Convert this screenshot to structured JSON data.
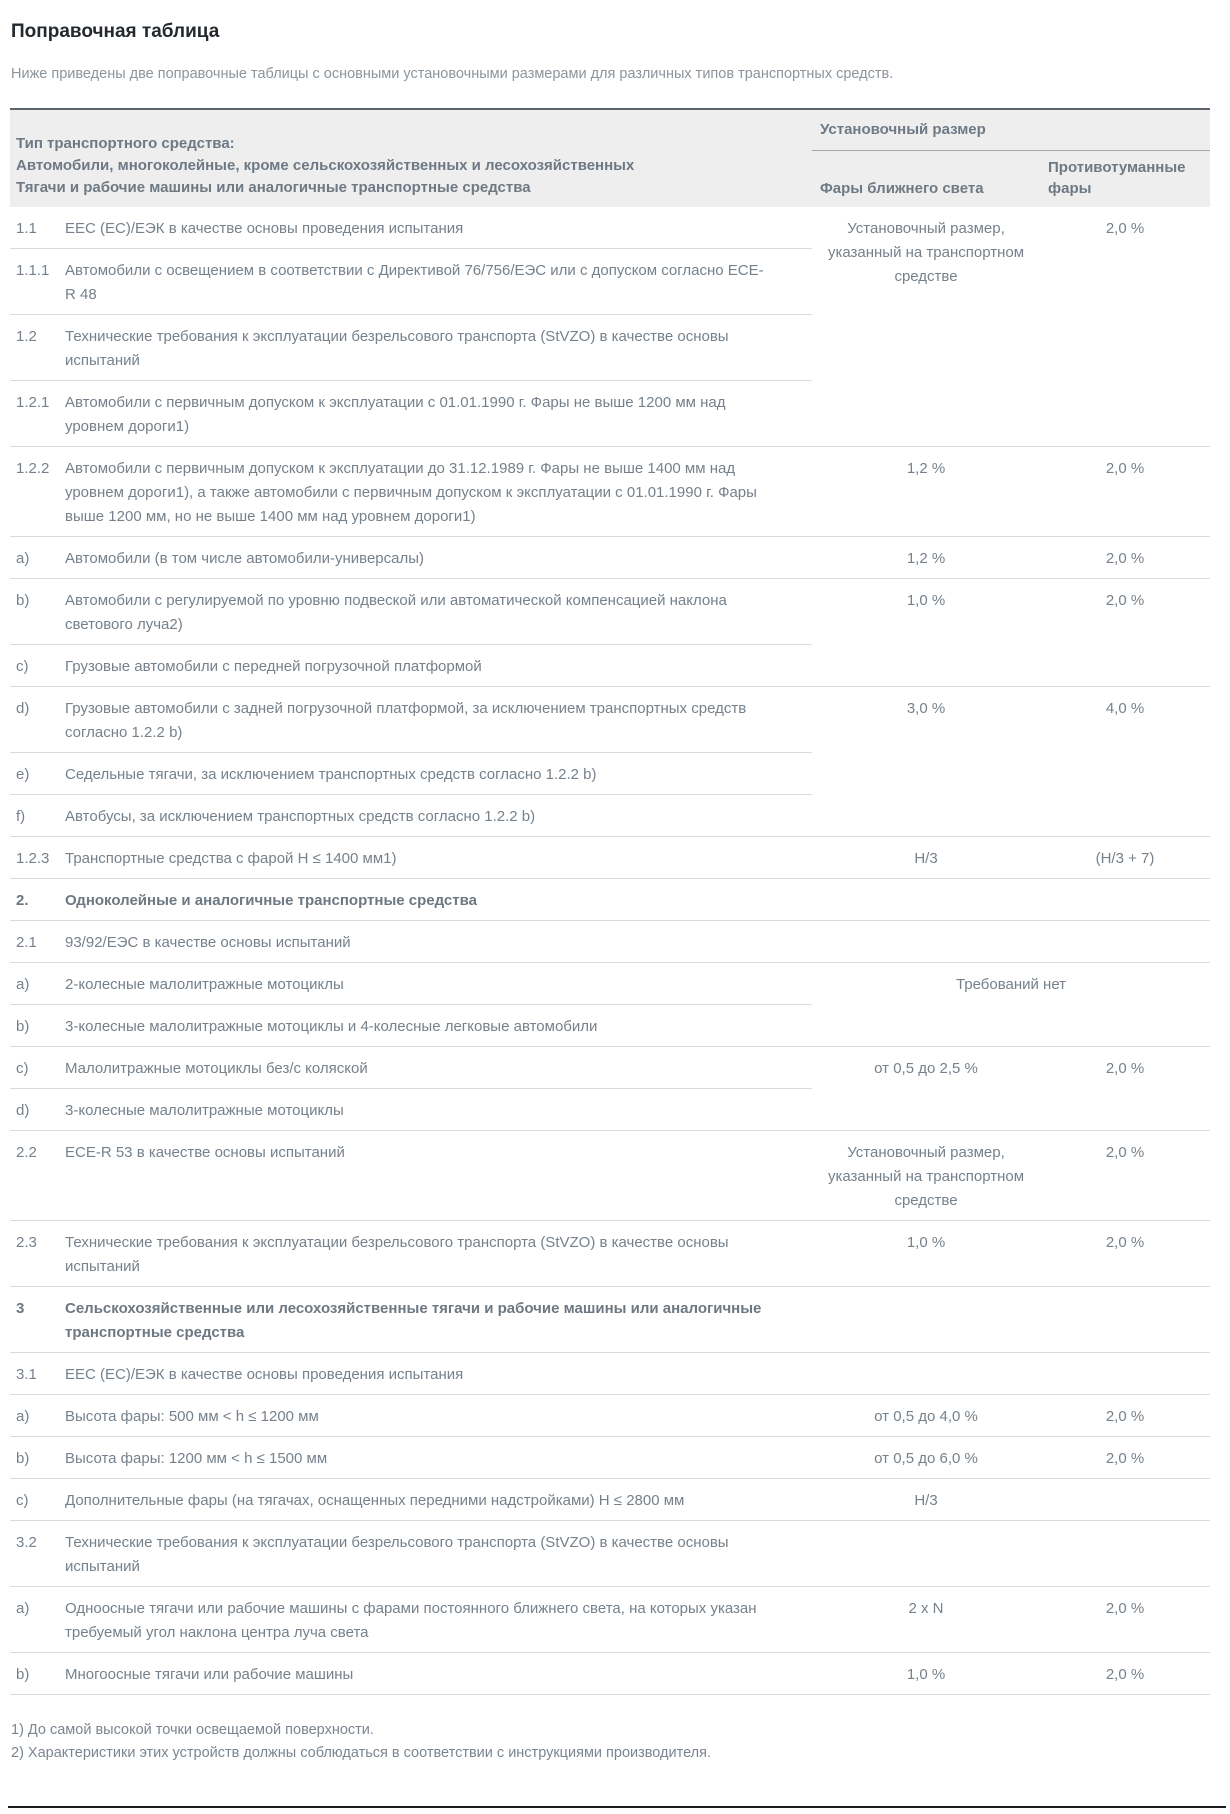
{
  "page": {
    "title": "Поправочная таблица",
    "intro": "Ниже приведены две поправочные таблицы с основными установочными размерами для различных типов транспортных средств.",
    "footnotes": [
      "1) До самой высокой точки освещаемой поверхности.",
      "2) Характеристики этих устройств должны соблюдаться в соответствии с инструкциями производителя."
    ]
  },
  "table": {
    "header": {
      "type_lines": [
        "Тип транспортного средства:",
        "Автомобили, многоколейные, кроме сельскохозяйственных и лесохозяйственных",
        "Тягачи и рабочие машины или аналогичные транспортные средства"
      ],
      "group": "Установочный размер",
      "col1": "Фары ближнего света",
      "col2": "Противотуманные фары"
    },
    "rows": [
      {
        "num": "1.1",
        "text": "EEC (EC)/ЕЭК в качестве основы проведения испытания",
        "val1": "Установочный размер, указанный на транспортном средстве",
        "val2": "2,0 %"
      },
      {
        "num": "1.1.1",
        "text": "Автомобили с освещением в соответствии с Директивой 76/756/ЕЭС или с допуском согласно ECE-R 48"
      },
      {
        "num": "1.2",
        "text": "Технические требования к эксплуатации безрельсового транспорта (StVZO) в качестве основы испытаний"
      },
      {
        "num": "1.2.1",
        "text": "Автомобили с первичным допуском к эксплуатации с 01.01.1990 г. Фары не выше 1200 мм над уровнем дороги1)"
      },
      {
        "num": "1.2.2",
        "text": "Автомобили с первичным допуском к эксплуатации до 31.12.1989 г. Фары не выше 1400 мм над уровнем дороги1), а также автомобили с первичным допуском к эксплуатации с 01.01.1990 г. Фары выше 1200 мм, но не выше 1400 мм над уровнем дороги1)",
        "val1": "1,2 %",
        "val2": "2,0 %"
      },
      {
        "num": "a)",
        "text": "Автомобили (в том числе автомобили-универсалы)",
        "val1": "1,2 %",
        "val2": "2,0 %"
      },
      {
        "num": "b)",
        "text": "Автомобили с регулируемой по уровню подвеской или автоматической компенсацией наклона светового луча2)",
        "val1": "1,0 %",
        "val2": "2,0 %"
      },
      {
        "num": "c)",
        "text": "Грузовые автомобили с передней погрузочной платформой"
      },
      {
        "num": "d)",
        "text": "Грузовые автомобили с задней погрузочной платформой, за исключением транспортных средств согласно 1.2.2 b)",
        "val1": "3,0 %",
        "val2": "4,0 %"
      },
      {
        "num": "e)",
        "text": "Седельные тягачи, за исключением транспортных средств согласно 1.2.2 b)"
      },
      {
        "num": "f)",
        "text": "Автобусы, за исключением транспортных средств согласно 1.2.2 b)"
      },
      {
        "num": "1.2.3",
        "text": "Транспортные средства с фарой H ≤ 1400 мм1)",
        "val1": "H/3",
        "val2": "(H/3 + 7)"
      },
      {
        "num": "2.",
        "text": "Одноколейные и аналогичные транспортные средства",
        "val1": "",
        "val2": ""
      },
      {
        "num": "2.1",
        "text": "93/92/ЕЭС в качестве основы испытаний",
        "val1": "",
        "val2": ""
      },
      {
        "num": "a)",
        "text": "2-колесные малолитражные мотоциклы",
        "valspan": "Требований нет"
      },
      {
        "num": "b)",
        "text": "3-колесные малолитражные мотоциклы и 4-колесные легковые автомобили"
      },
      {
        "num": "c)",
        "text": "Малолитражные мотоциклы без/с коляской",
        "val1": "от 0,5 до 2,5 %",
        "val2": "2,0 %"
      },
      {
        "num": "d)",
        "text": "3-колесные малолитражные мотоциклы"
      },
      {
        "num": "2.2",
        "text": "ECE-R 53 в качестве основы испытаний",
        "val1": "Установочный размер, указанный на транспортном средстве",
        "val2": "2,0 %"
      },
      {
        "num": "2.3",
        "text": "Технические требования к эксплуатации безрельсового транспорта (StVZO) в качестве основы испытаний",
        "val1": "1,0 %",
        "val2": "2,0 %"
      },
      {
        "num": "3",
        "text": "Сельскохозяйственные или лесохозяйственные тягачи и рабочие машины или аналогичные транспортные средства",
        "val1": "",
        "val2": ""
      },
      {
        "num": "3.1",
        "text": "EEC (EC)/ЕЭК в качестве основы проведения испытания",
        "val1": "",
        "val2": ""
      },
      {
        "num": "a)",
        "text": "Высота фары: 500 мм < h ≤ 1200 мм",
        "val1": "от 0,5 до 4,0 %",
        "val2": "2,0 %"
      },
      {
        "num": "b)",
        "text": "Высота фары: 1200 мм < h ≤ 1500 мм",
        "val1": "от 0,5 до 6,0 %",
        "val2": "2,0 %"
      },
      {
        "num": "c)",
        "text": "Дополнительные фары (на тягачах, оснащенных передними надстройками) H ≤ 2800 мм",
        "val1": "H/3",
        "val2": ""
      },
      {
        "num": "3.2",
        "text": "Технические требования к эксплуатации безрельсового транспорта (StVZO) в качестве основы испытаний",
        "val1": "",
        "val2": ""
      },
      {
        "num": "a)",
        "text": "Одноосные тягачи или рабочие машины с фарами постоянного ближнего света, на которых указан требуемый угол наклона центра луча света",
        "val1": "2 x N",
        "val2": "2,0 %"
      },
      {
        "num": "b)",
        "text": "Многоосные тягачи или рабочие машины",
        "val1": "1,0 %",
        "val2": "2,0 %"
      }
    ]
  }
}
